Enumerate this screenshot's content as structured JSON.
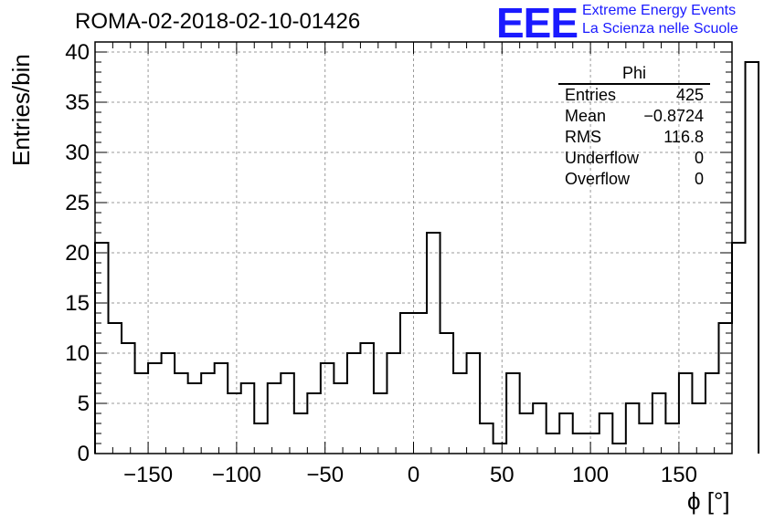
{
  "title": "ROMA-02-2018-02-10-01426",
  "logo": {
    "text": "EEE",
    "line1": "Extreme Energy Events",
    "line2": "La Scienza nelle Scuole",
    "color": "#1a1aff"
  },
  "stats": {
    "name": "Phi",
    "rows": [
      {
        "label": "Entries",
        "value": "425"
      },
      {
        "label": "Mean",
        "value": "−0.8724"
      },
      {
        "label": "RMS",
        "value": "116.8"
      },
      {
        "label": "Underflow",
        "value": "0"
      },
      {
        "label": "Overflow",
        "value": "0"
      }
    ]
  },
  "chart_data": {
    "type": "bar",
    "style": "step-histogram",
    "xlabel": "ϕ [°]",
    "ylabel": "Entries/bin",
    "xlim": [
      -180,
      180
    ],
    "ylim": [
      0,
      41
    ],
    "bin_width": 7.5,
    "x_ticks": [
      -150,
      -100,
      -50,
      0,
      50,
      100,
      150
    ],
    "y_ticks": [
      0,
      5,
      10,
      15,
      20,
      25,
      30,
      35,
      40
    ],
    "grid": true,
    "values": [
      21,
      13,
      11,
      8,
      9,
      10,
      8,
      7,
      8,
      9,
      6,
      7,
      3,
      7,
      8,
      4,
      6,
      9,
      7,
      10,
      11,
      6,
      10,
      14,
      14,
      22,
      12,
      8,
      10,
      3,
      1,
      8,
      4,
      5,
      2,
      4,
      2,
      2,
      4,
      1,
      5,
      3,
      6,
      3,
      8,
      5,
      8,
      13,
      21,
      39
    ]
  }
}
